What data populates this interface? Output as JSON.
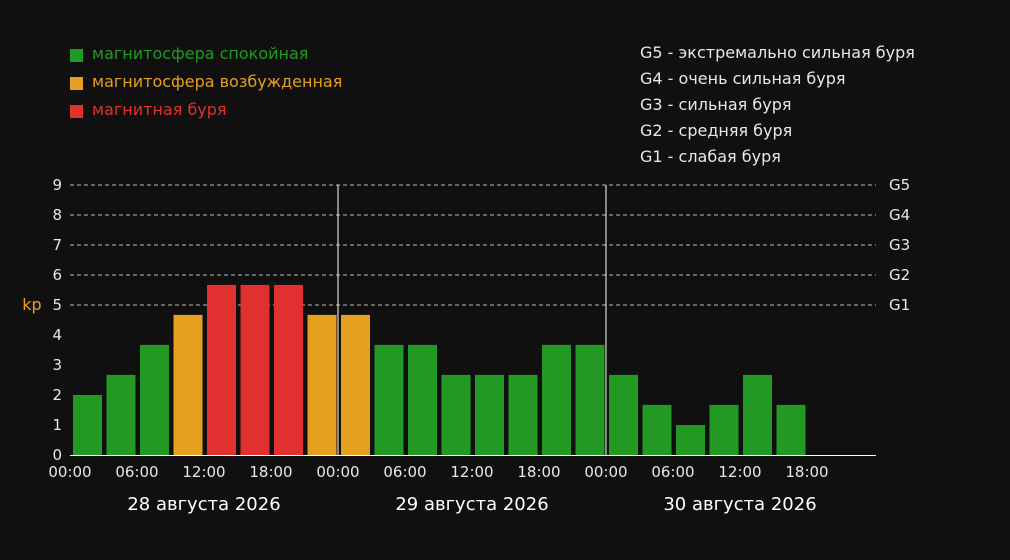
{
  "colors": {
    "quiet": "#229922",
    "active": "#e6a020",
    "storm": "#e03030",
    "background": "#101010",
    "text": "#e8e8e8"
  },
  "legend": [
    {
      "label": "магнитосфера спокойная",
      "color": "#229922"
    },
    {
      "label": "магнитосфера возбужденная",
      "color": "#e6a020"
    },
    {
      "label": "магнитная буря",
      "color": "#e03030"
    }
  ],
  "storm_scale": [
    "G5 - экстремально сильная буря",
    "G4 - очень сильная буря",
    "G3 - сильная буря",
    "G2 - средняя буря",
    "G1 - слабая буря"
  ],
  "chart_data": {
    "type": "bar",
    "ylabel": "kp",
    "ylim": [
      0,
      9
    ],
    "yticks": [
      0,
      1,
      2,
      3,
      4,
      5,
      6,
      7,
      8,
      9
    ],
    "grid": "dashed horizontal at 5–9",
    "right_labels": [
      {
        "value": 9,
        "label": "G5"
      },
      {
        "value": 8,
        "label": "G4"
      },
      {
        "value": 7,
        "label": "G3"
      },
      {
        "value": 6,
        "label": "G2"
      },
      {
        "value": 5,
        "label": "G1"
      }
    ],
    "days": [
      "28 августа 2026",
      "29 августа 2026",
      "30 августа 2026"
    ],
    "time_labels": [
      "00:00",
      "06:00",
      "12:00",
      "18:00"
    ],
    "slots_per_day": 8,
    "values": [
      2,
      2.67,
      3.67,
      4.67,
      5.67,
      5.67,
      5.67,
      4.67,
      4.67,
      3.67,
      3.67,
      2.67,
      2.67,
      2.67,
      3.67,
      3.67,
      2.67,
      1.67,
      1,
      1.67,
      2.67,
      1.67
    ],
    "categories": [
      "quiet",
      "quiet",
      "quiet",
      "active",
      "storm",
      "storm",
      "storm",
      "active",
      "active",
      "quiet",
      "quiet",
      "quiet",
      "quiet",
      "quiet",
      "quiet",
      "quiet",
      "quiet",
      "quiet",
      "quiet",
      "quiet",
      "quiet",
      "quiet"
    ]
  }
}
